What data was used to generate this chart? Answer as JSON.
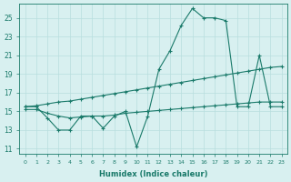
{
  "xlabel": "Humidex (Indice chaleur)",
  "x_values": [
    0,
    1,
    2,
    3,
    4,
    5,
    6,
    7,
    8,
    9,
    10,
    11,
    12,
    13,
    14,
    15,
    16,
    17,
    18,
    19,
    20,
    21,
    22,
    23
  ],
  "line_main": [
    15.5,
    15.5,
    14.3,
    13.0,
    13.0,
    14.5,
    14.5,
    13.2,
    14.5,
    15.0,
    11.2,
    14.5,
    19.5,
    21.5,
    24.2,
    26.0,
    25.0,
    25.0,
    24.7,
    15.5,
    15.5,
    21.0,
    15.5,
    15.5
  ],
  "line_upper": [
    15.5,
    15.6,
    15.8,
    16.0,
    16.1,
    16.3,
    16.5,
    16.7,
    16.9,
    17.1,
    17.3,
    17.5,
    17.7,
    17.9,
    18.1,
    18.3,
    18.5,
    18.7,
    18.9,
    19.1,
    19.3,
    19.5,
    19.7,
    19.8
  ],
  "line_lower": [
    15.2,
    15.2,
    14.8,
    14.5,
    14.3,
    14.4,
    14.5,
    14.5,
    14.6,
    14.8,
    14.9,
    15.0,
    15.1,
    15.2,
    15.3,
    15.4,
    15.5,
    15.6,
    15.7,
    15.8,
    15.9,
    16.0,
    16.0,
    16.0
  ],
  "line_color": "#1a7a6a",
  "bg_color": "#d8f0f0",
  "grid_color": "#b8dede",
  "ylim": [
    10.5,
    26.5
  ],
  "xlim": [
    -0.5,
    23.5
  ],
  "yticks": [
    11,
    13,
    15,
    17,
    19,
    21,
    23,
    25
  ]
}
